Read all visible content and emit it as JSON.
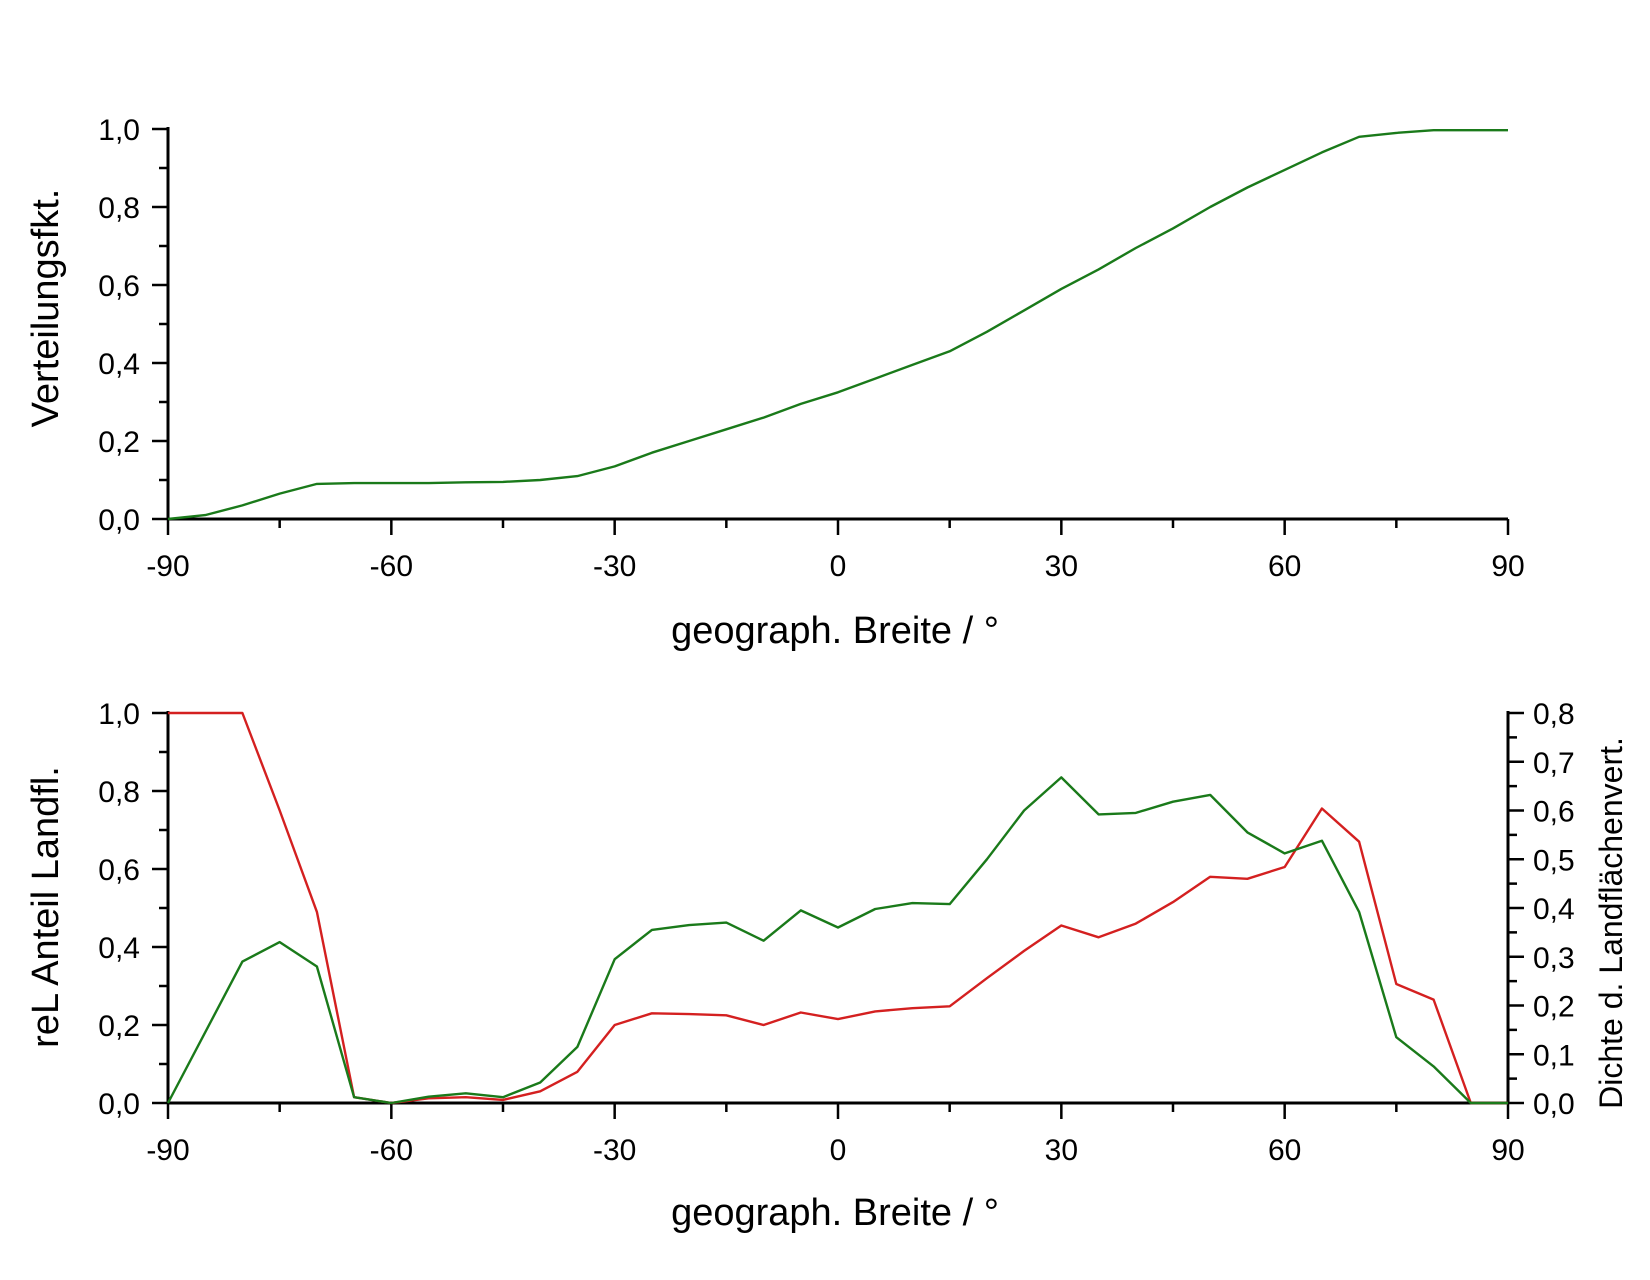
{
  "chart_data": [
    {
      "type": "line",
      "xlabel": "geograph. Breite / °",
      "ylabel": "Verteilungsfkt.",
      "xlim": [
        -90,
        90
      ],
      "ylim": [
        0,
        1
      ],
      "x_ticks": [
        "-90",
        "-60",
        "-30",
        "0",
        "30",
        "60",
        "90"
      ],
      "y_ticks": [
        "0,0",
        "0,2",
        "0,4",
        "0,6",
        "0,8",
        "1,0"
      ],
      "grid": false,
      "colors": {
        "line": "#1a7a1a"
      },
      "series": [
        {
          "x": [
            -90,
            -85,
            -80,
            -75,
            -70,
            -65,
            -60,
            -55,
            -50,
            -45,
            -40,
            -35,
            -30,
            -25,
            -20,
            -15,
            -10,
            -5,
            0,
            5,
            10,
            15,
            20,
            25,
            30,
            35,
            40,
            45,
            50,
            55,
            60,
            65,
            70,
            75,
            80,
            85,
            90
          ],
          "y": [
            0.0,
            0.01,
            0.035,
            0.065,
            0.09,
            0.092,
            0.092,
            0.092,
            0.094,
            0.095,
            0.1,
            0.11,
            0.135,
            0.17,
            0.2,
            0.23,
            0.26,
            0.295,
            0.325,
            0.36,
            0.395,
            0.43,
            0.48,
            0.535,
            0.59,
            0.64,
            0.695,
            0.745,
            0.8,
            0.85,
            0.895,
            0.94,
            0.98,
            0.99,
            0.997,
            0.997,
            0.997
          ]
        }
      ]
    },
    {
      "type": "line",
      "xlabel": "geograph. Breite / °",
      "ylabel": "reL Anteil Landfl.",
      "ylabel_right": "Dichte d. Landflächenvert.",
      "xlim": [
        -90,
        90
      ],
      "ylim": [
        0,
        1
      ],
      "ylim_right": [
        0,
        0.8
      ],
      "x_ticks": [
        "-90",
        "-60",
        "-30",
        "0",
        "30",
        "60",
        "90"
      ],
      "y_ticks": [
        "0,0",
        "0,2",
        "0,4",
        "0,6",
        "0,8",
        "1,0"
      ],
      "y_ticks_right": [
        "0,0",
        "0,1",
        "0,2",
        "0,3",
        "0,4",
        "0,5",
        "0,6",
        "0,7",
        "0,8"
      ],
      "grid": false,
      "colors": {
        "red": "#d42020",
        "green": "#1a7a1a"
      },
      "series": [
        {
          "axis": "left",
          "color": "red",
          "x": [
            -90,
            -80,
            -75,
            -70,
            -65,
            -60,
            -55,
            -50,
            -45,
            -40,
            -35,
            -30,
            -25,
            -20,
            -15,
            -10,
            -5,
            0,
            5,
            10,
            15,
            20,
            25,
            30,
            35,
            40,
            45,
            50,
            55,
            60,
            65,
            70,
            75,
            80,
            85,
            90
          ],
          "y": [
            1.0,
            1.0,
            0.75,
            0.49,
            0.015,
            0.0,
            0.012,
            0.015,
            0.008,
            0.03,
            0.08,
            0.2,
            0.23,
            0.228,
            0.225,
            0.2,
            0.232,
            0.215,
            0.235,
            0.243,
            0.248,
            0.32,
            0.39,
            0.455,
            0.425,
            0.46,
            0.515,
            0.58,
            0.575,
            0.605,
            0.755,
            0.67,
            0.305,
            0.265,
            0.0,
            0.0
          ]
        },
        {
          "axis": "right",
          "color": "green",
          "x": [
            -90,
            -80,
            -75,
            -70,
            -65,
            -60,
            -55,
            -50,
            -45,
            -40,
            -35,
            -30,
            -25,
            -20,
            -15,
            -10,
            -5,
            0,
            5,
            10,
            15,
            20,
            25,
            30,
            35,
            40,
            45,
            50,
            55,
            60,
            65,
            70,
            75,
            80,
            85,
            90
          ],
          "y": [
            0.0,
            0.29,
            0.33,
            0.28,
            0.012,
            0.0,
            0.013,
            0.02,
            0.012,
            0.042,
            0.115,
            0.295,
            0.355,
            0.365,
            0.37,
            0.333,
            0.395,
            0.36,
            0.398,
            0.41,
            0.408,
            0.5,
            0.6,
            0.668,
            0.592,
            0.595,
            0.618,
            0.632,
            0.555,
            0.512,
            0.538,
            0.392,
            0.135,
            0.075,
            0.0,
            0.0
          ]
        }
      ]
    }
  ]
}
